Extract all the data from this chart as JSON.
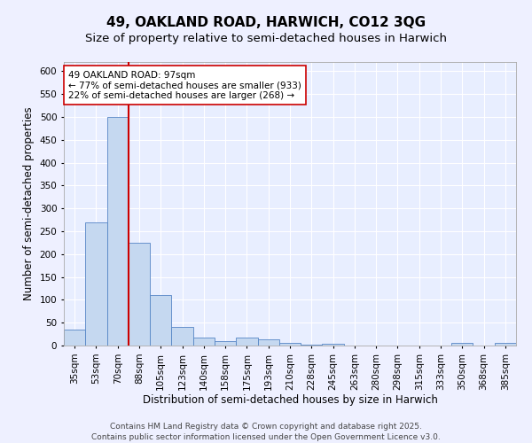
{
  "title1": "49, OAKLAND ROAD, HARWICH, CO12 3QG",
  "title2": "Size of property relative to semi-detached houses in Harwich",
  "xlabel": "Distribution of semi-detached houses by size in Harwich",
  "ylabel": "Number of semi-detached properties",
  "categories": [
    "35sqm",
    "53sqm",
    "70sqm",
    "88sqm",
    "105sqm",
    "123sqm",
    "140sqm",
    "158sqm",
    "175sqm",
    "193sqm",
    "210sqm",
    "228sqm",
    "245sqm",
    "263sqm",
    "280sqm",
    "298sqm",
    "315sqm",
    "333sqm",
    "350sqm",
    "368sqm",
    "385sqm"
  ],
  "values": [
    35,
    270,
    500,
    225,
    110,
    40,
    18,
    10,
    18,
    13,
    5,
    2,
    4,
    0,
    0,
    0,
    0,
    0,
    5,
    0,
    5
  ],
  "bar_color": "#c5d8f0",
  "bar_edge_color": "#5585c5",
  "vline_color": "#cc0000",
  "vline_x_index": 3,
  "annotation_text": "49 OAKLAND ROAD: 97sqm\n← 77% of semi-detached houses are smaller (933)\n22% of semi-detached houses are larger (268) →",
  "annotation_box_color": "#ffffff",
  "annotation_box_edge": "#cc0000",
  "bg_color": "#e8eeff",
  "fig_bg_color": "#eef0ff",
  "grid_color": "#ffffff",
  "ylim": [
    0,
    620
  ],
  "yticks": [
    0,
    50,
    100,
    150,
    200,
    250,
    300,
    350,
    400,
    450,
    500,
    550,
    600
  ],
  "footnote": "Contains HM Land Registry data © Crown copyright and database right 2025.\nContains public sector information licensed under the Open Government Licence v3.0.",
  "title_fontsize": 11,
  "subtitle_fontsize": 9.5,
  "label_fontsize": 8.5,
  "tick_fontsize": 7.5,
  "annot_fontsize": 7.5,
  "footnote_fontsize": 6.5
}
